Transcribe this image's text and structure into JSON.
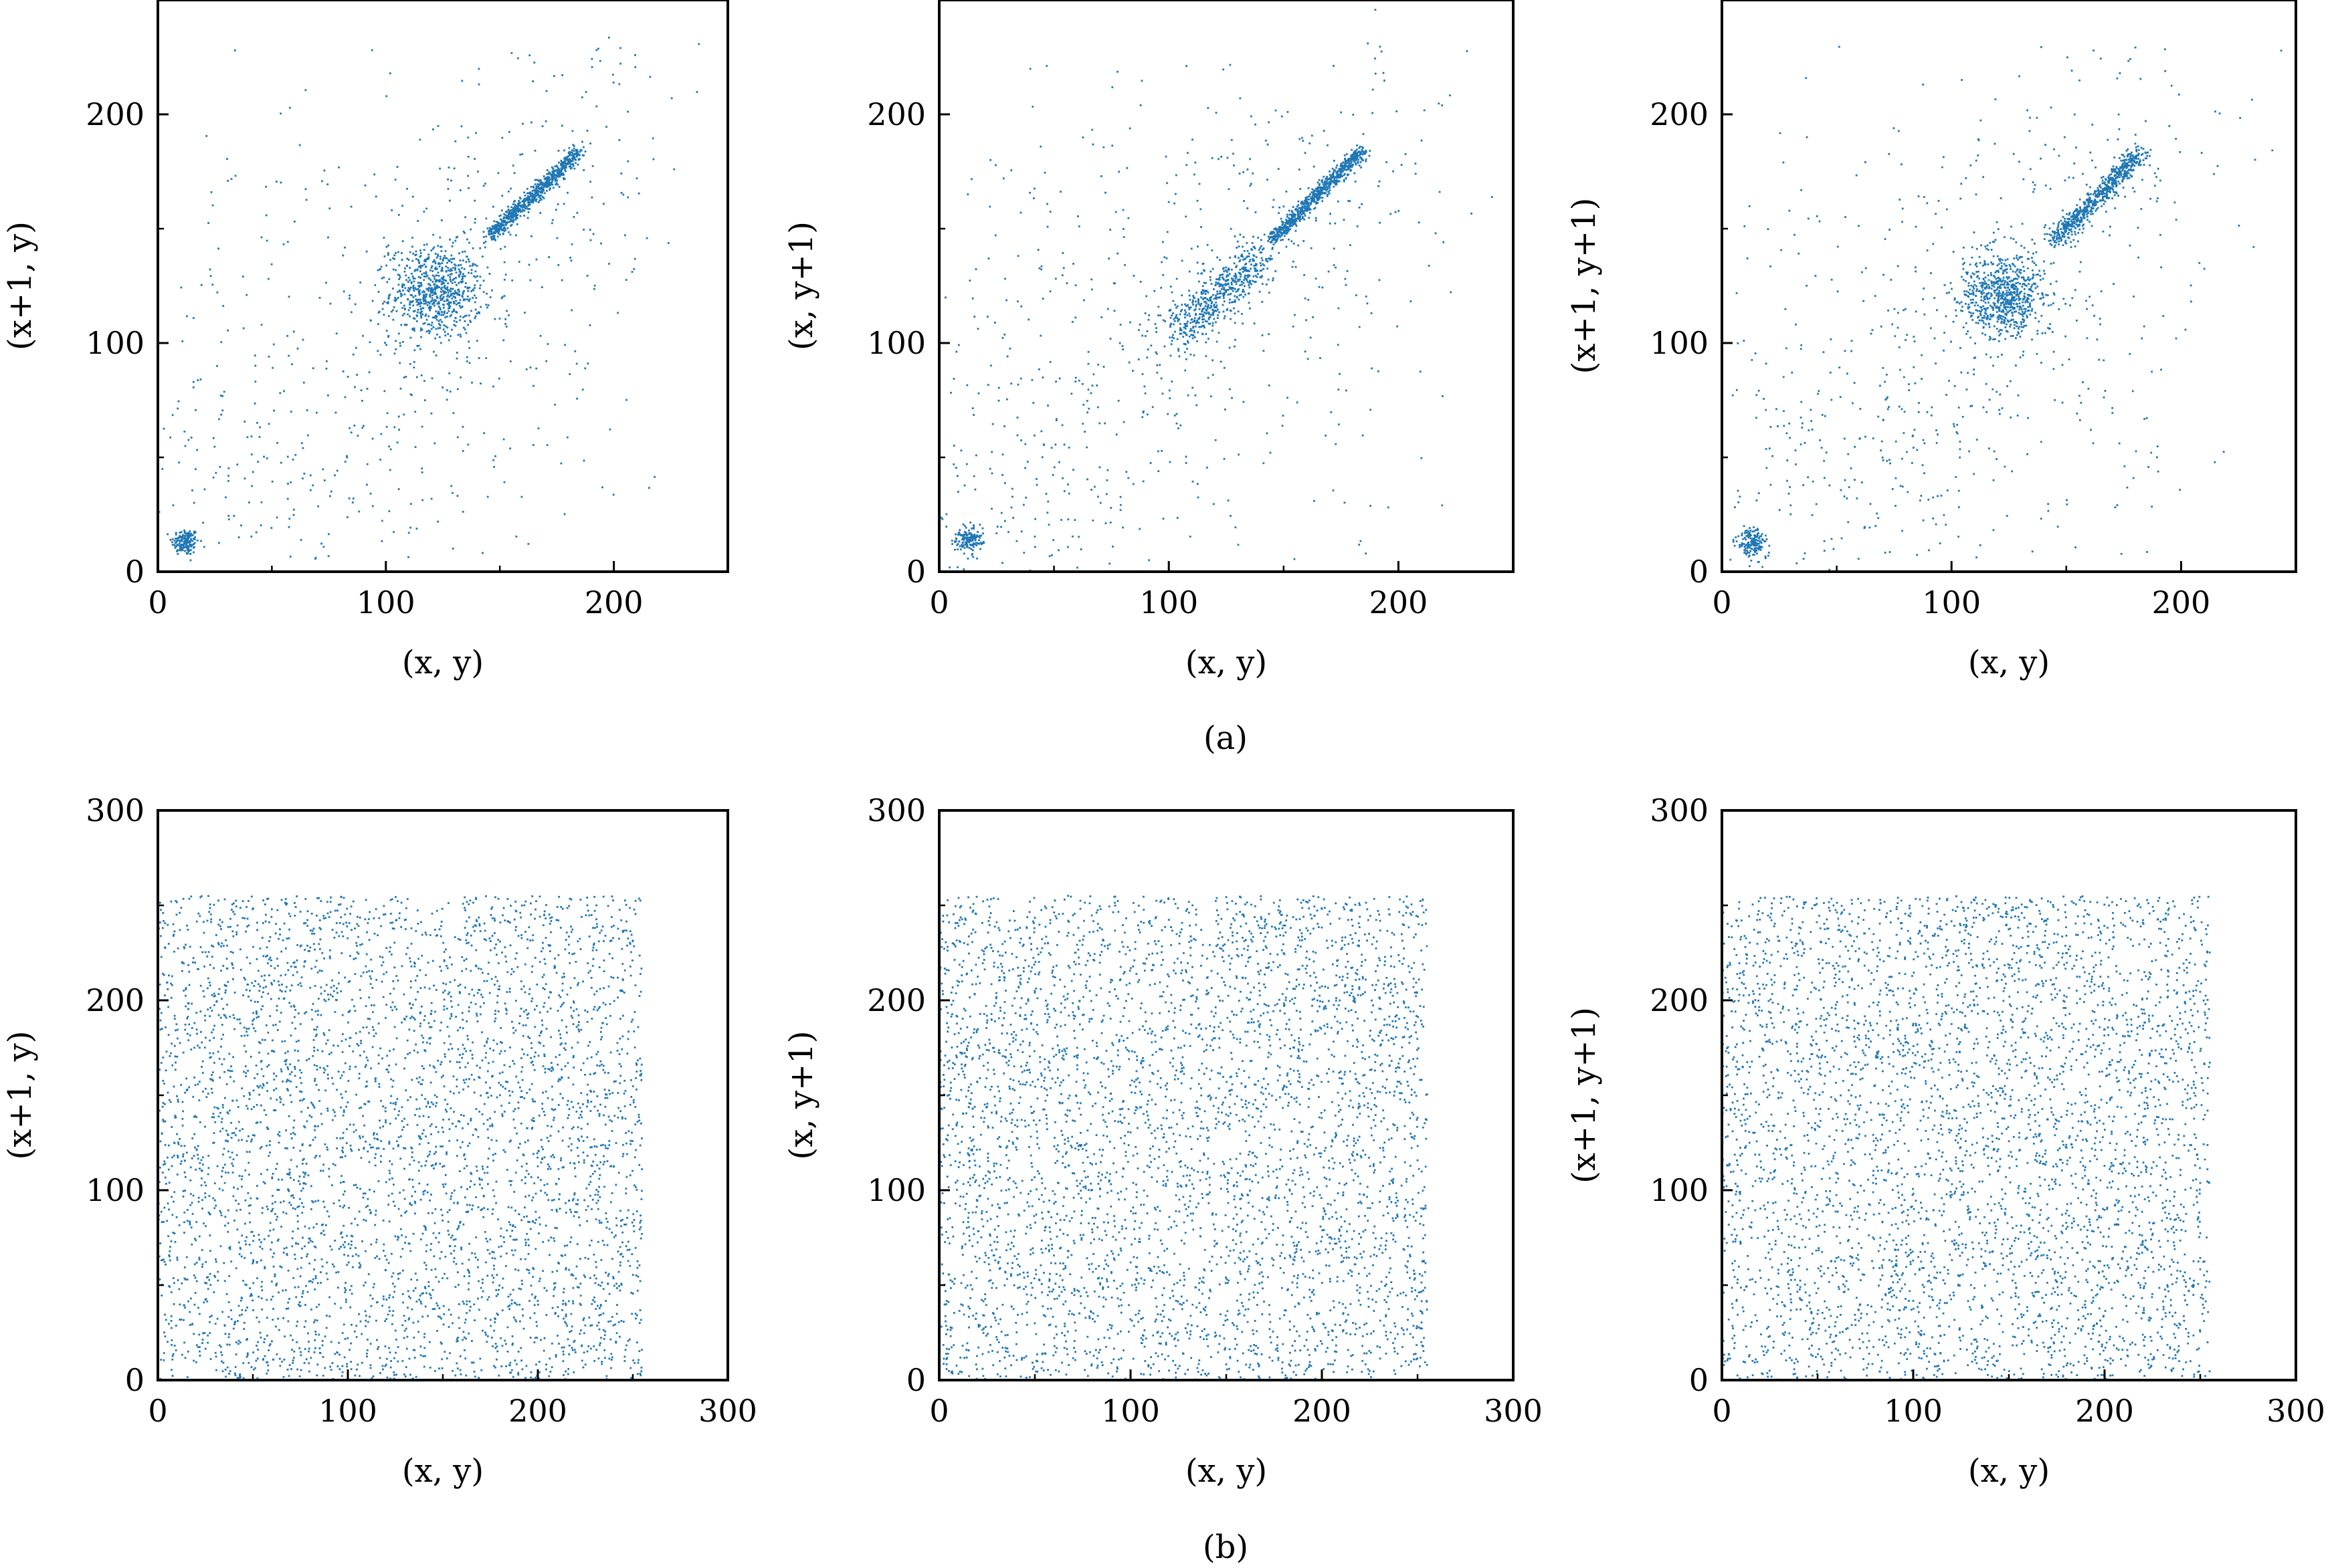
{
  "figure": {
    "captions": [
      "(a)",
      "(b)"
    ],
    "point_color": "#1f77b4",
    "frame_color": "#000000"
  },
  "chart_data": [
    {
      "type": "scatter",
      "row": "a",
      "xlabel": "(x, y)",
      "ylabel": "(x+1, y)",
      "xlim": [
        0,
        250
      ],
      "ylim": [
        0,
        250
      ],
      "xticks": [
        "0",
        "100",
        "200"
      ],
      "yticks": [
        "0",
        "100",
        "200"
      ],
      "xtick_values": [
        0,
        100,
        200
      ],
      "ytick_values": [
        0,
        100,
        200
      ],
      "distribution": "correlated",
      "clusters": [
        {
          "center": [
            12,
            13
          ],
          "spread": 3,
          "count": 160
        },
        {
          "center": [
            122,
            122
          ],
          "spread": 10,
          "count": 700
        },
        {
          "line_from": [
            145,
            146
          ],
          "line_to": [
            185,
            184
          ],
          "spread": 1.6,
          "count": 700
        }
      ],
      "background_points": 650
    },
    {
      "type": "scatter",
      "row": "a",
      "xlabel": "(x, y)",
      "ylabel": "(x, y+1)",
      "xlim": [
        0,
        250
      ],
      "ylim": [
        0,
        250
      ],
      "xticks": [
        "0",
        "100",
        "200"
      ],
      "yticks": [
        "0",
        "100",
        "200"
      ],
      "xtick_values": [
        0,
        100,
        200
      ],
      "ytick_values": [
        0,
        100,
        200
      ],
      "distribution": "correlated",
      "clusters": [
        {
          "center": [
            13,
            14
          ],
          "spread": 3,
          "count": 160
        },
        {
          "line_from": [
            105,
            105
          ],
          "line_to": [
            140,
            138
          ],
          "spread": 5,
          "count": 550
        },
        {
          "line_from": [
            145,
            145
          ],
          "line_to": [
            184,
            184
          ],
          "spread": 1.6,
          "count": 700
        }
      ],
      "background_points": 650
    },
    {
      "type": "scatter",
      "row": "a",
      "xlabel": "(x, y)",
      "ylabel": "(x+1, y+1)",
      "xlim": [
        0,
        250
      ],
      "ylim": [
        0,
        250
      ],
      "xticks": [
        "0",
        "100",
        "200"
      ],
      "yticks": [
        "0",
        "100",
        "200"
      ],
      "xtick_values": [
        0,
        100,
        200
      ],
      "ytick_values": [
        0,
        100,
        200
      ],
      "distribution": "correlated",
      "clusters": [
        {
          "center": [
            13,
            13
          ],
          "spread": 3,
          "count": 160
        },
        {
          "center": [
            122,
            121
          ],
          "spread": 9,
          "count": 700
        },
        {
          "line_from": [
            145,
            145
          ],
          "line_to": [
            183,
            184
          ],
          "spread": 2.2,
          "count": 650
        }
      ],
      "background_points": 650
    },
    {
      "type": "scatter",
      "row": "b",
      "xlabel": "(x, y)",
      "ylabel": "(x+1, y)",
      "xlim": [
        0,
        300
      ],
      "ylim": [
        0,
        300
      ],
      "xticks": [
        "0",
        "100",
        "200",
        "300"
      ],
      "yticks": [
        "0",
        "100",
        "200",
        "300"
      ],
      "xtick_values": [
        0,
        100,
        200,
        300
      ],
      "ytick_values": [
        0,
        100,
        200,
        300
      ],
      "distribution": "uniform",
      "uniform_range": [
        0,
        255
      ],
      "points": 4200
    },
    {
      "type": "scatter",
      "row": "b",
      "xlabel": "(x, y)",
      "ylabel": "(x, y+1)",
      "xlim": [
        0,
        300
      ],
      "ylim": [
        0,
        300
      ],
      "xticks": [
        "0",
        "100",
        "200",
        "300"
      ],
      "yticks": [
        "0",
        "100",
        "200",
        "300"
      ],
      "xtick_values": [
        0,
        100,
        200,
        300
      ],
      "ytick_values": [
        0,
        100,
        200,
        300
      ],
      "distribution": "uniform",
      "uniform_range": [
        0,
        255
      ],
      "points": 4200
    },
    {
      "type": "scatter",
      "row": "b",
      "xlabel": "(x, y)",
      "ylabel": "(x+1, y+1)",
      "xlim": [
        0,
        300
      ],
      "ylim": [
        0,
        300
      ],
      "xticks": [
        "0",
        "100",
        "200",
        "300"
      ],
      "yticks": [
        "0",
        "100",
        "200",
        "300"
      ],
      "xtick_values": [
        0,
        100,
        200,
        300
      ],
      "ytick_values": [
        0,
        100,
        200,
        300
      ],
      "distribution": "uniform",
      "uniform_range": [
        0,
        255
      ],
      "points": 4200
    }
  ]
}
